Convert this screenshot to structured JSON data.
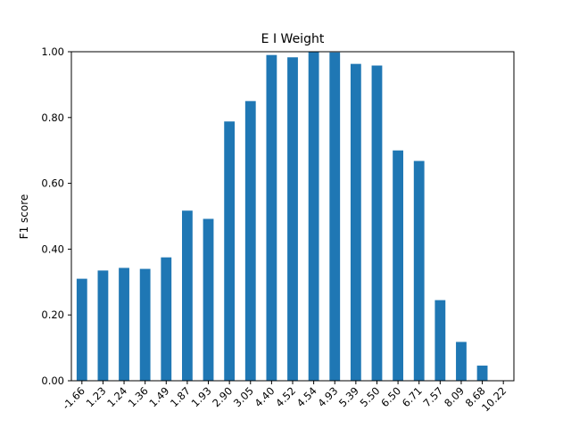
{
  "chart_data": {
    "type": "bar",
    "title": "E I Weight",
    "xlabel": "",
    "ylabel": "F1 score",
    "categories": [
      "-1.66",
      "1.23",
      "1.24",
      "1.36",
      "1.49",
      "1.87",
      "1.93",
      "2.90",
      "3.05",
      "4.40",
      "4.52",
      "4.54",
      "4.93",
      "5.39",
      "5.50",
      "6.50",
      "6.71",
      "7.57",
      "8.09",
      "8.68",
      "10.22"
    ],
    "values": [
      0.31,
      0.335,
      0.343,
      0.34,
      0.375,
      0.517,
      0.492,
      0.788,
      0.85,
      0.99,
      0.983,
      1.0,
      0.998,
      0.963,
      0.958,
      0.7,
      0.668,
      0.245,
      0.118,
      0.046,
      0.0
    ],
    "ylim": [
      0,
      1
    ],
    "yticks": [
      "0.00",
      "0.20",
      "0.40",
      "0.60",
      "0.80",
      "1.00"
    ],
    "grid": false,
    "legend": "none",
    "colors": {
      "bar": "#1f77b4",
      "axis": "#000000"
    }
  }
}
